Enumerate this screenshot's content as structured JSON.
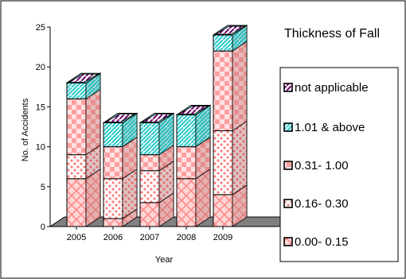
{
  "chart_data": {
    "type": "bar",
    "stacked": true,
    "three_d": true,
    "title": "Thickness of Fall",
    "xlabel": "Year",
    "ylabel": "No. of Accidents",
    "ylim": [
      0,
      25
    ],
    "yticks": [
      "0",
      "5",
      "10",
      "15",
      "20",
      "25"
    ],
    "categories": [
      "2005",
      "2006",
      "2007",
      "2008",
      "2009"
    ],
    "series": [
      {
        "name": "0.00- 0.15",
        "values": [
          6,
          1,
          3,
          6,
          4
        ],
        "color": "#ff9999"
      },
      {
        "name": "0.16- 0.30",
        "values": [
          3,
          5,
          4,
          0,
          8
        ],
        "color": "#ff9999"
      },
      {
        "name": "0.31- 1.00",
        "values": [
          7,
          4,
          2,
          4,
          10
        ],
        "color": "#ff9999"
      },
      {
        "name": "1.01 & above",
        "values": [
          2,
          3,
          4,
          4,
          2
        ],
        "color": "#33cccc"
      },
      {
        "name": "not applicable",
        "values": [
          0,
          0,
          0,
          0,
          0
        ],
        "color": "#660066"
      }
    ],
    "legend_position": "right",
    "legend_order": [
      "not applicable",
      "1.01 & above",
      "0.31- 1.00",
      "0.16- 0.30",
      "0.00- 0.15"
    ],
    "grid": false
  }
}
